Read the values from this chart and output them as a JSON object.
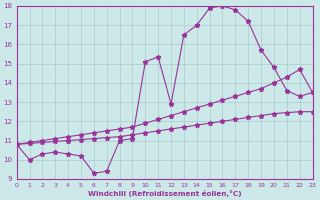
{
  "curve1_x": [
    0,
    1,
    2,
    3,
    4,
    5,
    6,
    7,
    8,
    9,
    10,
    11,
    12,
    13,
    14,
    15,
    16,
    17,
    18,
    19,
    20,
    21,
    22,
    23
  ],
  "curve1_y": [
    10.8,
    10.0,
    10.3,
    10.4,
    10.3,
    10.2,
    9.3,
    9.4,
    11.0,
    11.1,
    15.1,
    15.35,
    12.9,
    16.5,
    17.0,
    17.9,
    18.0,
    17.8,
    17.2,
    15.7,
    14.8,
    13.6,
    13.3,
    13.5
  ],
  "curve2_x": [
    0,
    1,
    2,
    3,
    4,
    5,
    6,
    7,
    8,
    9,
    10,
    11,
    12,
    13,
    14,
    15,
    16,
    17,
    18,
    19,
    20,
    21,
    22,
    23
  ],
  "curve2_y": [
    10.8,
    10.9,
    11.0,
    11.1,
    11.2,
    11.3,
    11.4,
    11.5,
    11.6,
    11.7,
    11.9,
    12.1,
    12.3,
    12.5,
    12.7,
    12.9,
    13.1,
    13.3,
    13.5,
    13.7,
    14.0,
    14.3,
    14.7,
    13.5
  ],
  "curve3_x": [
    0,
    1,
    2,
    3,
    4,
    5,
    6,
    7,
    8,
    9,
    10,
    11,
    12,
    13,
    14,
    15,
    16,
    17,
    18,
    19,
    20,
    21,
    22,
    23
  ],
  "curve3_y": [
    10.8,
    10.85,
    10.9,
    10.95,
    11.0,
    11.05,
    11.1,
    11.15,
    11.2,
    11.3,
    11.4,
    11.5,
    11.6,
    11.7,
    11.8,
    11.9,
    12.0,
    12.1,
    12.2,
    12.3,
    12.4,
    12.45,
    12.5,
    12.5
  ],
  "color": "#993399",
  "bg_color": "#cce8e8",
  "grid_color": "#aacccc",
  "xlabel": "Windchill (Refroidissement éolien,°C)",
  "ylim": [
    9,
    18
  ],
  "xlim": [
    0,
    23
  ],
  "yticks": [
    9,
    10,
    11,
    12,
    13,
    14,
    15,
    16,
    17,
    18
  ],
  "xticks": [
    0,
    1,
    2,
    3,
    4,
    5,
    6,
    7,
    8,
    9,
    10,
    11,
    12,
    13,
    14,
    15,
    16,
    17,
    18,
    19,
    20,
    21,
    22,
    23
  ],
  "marker": "*",
  "markersize": 3.5,
  "linewidth": 0.8
}
